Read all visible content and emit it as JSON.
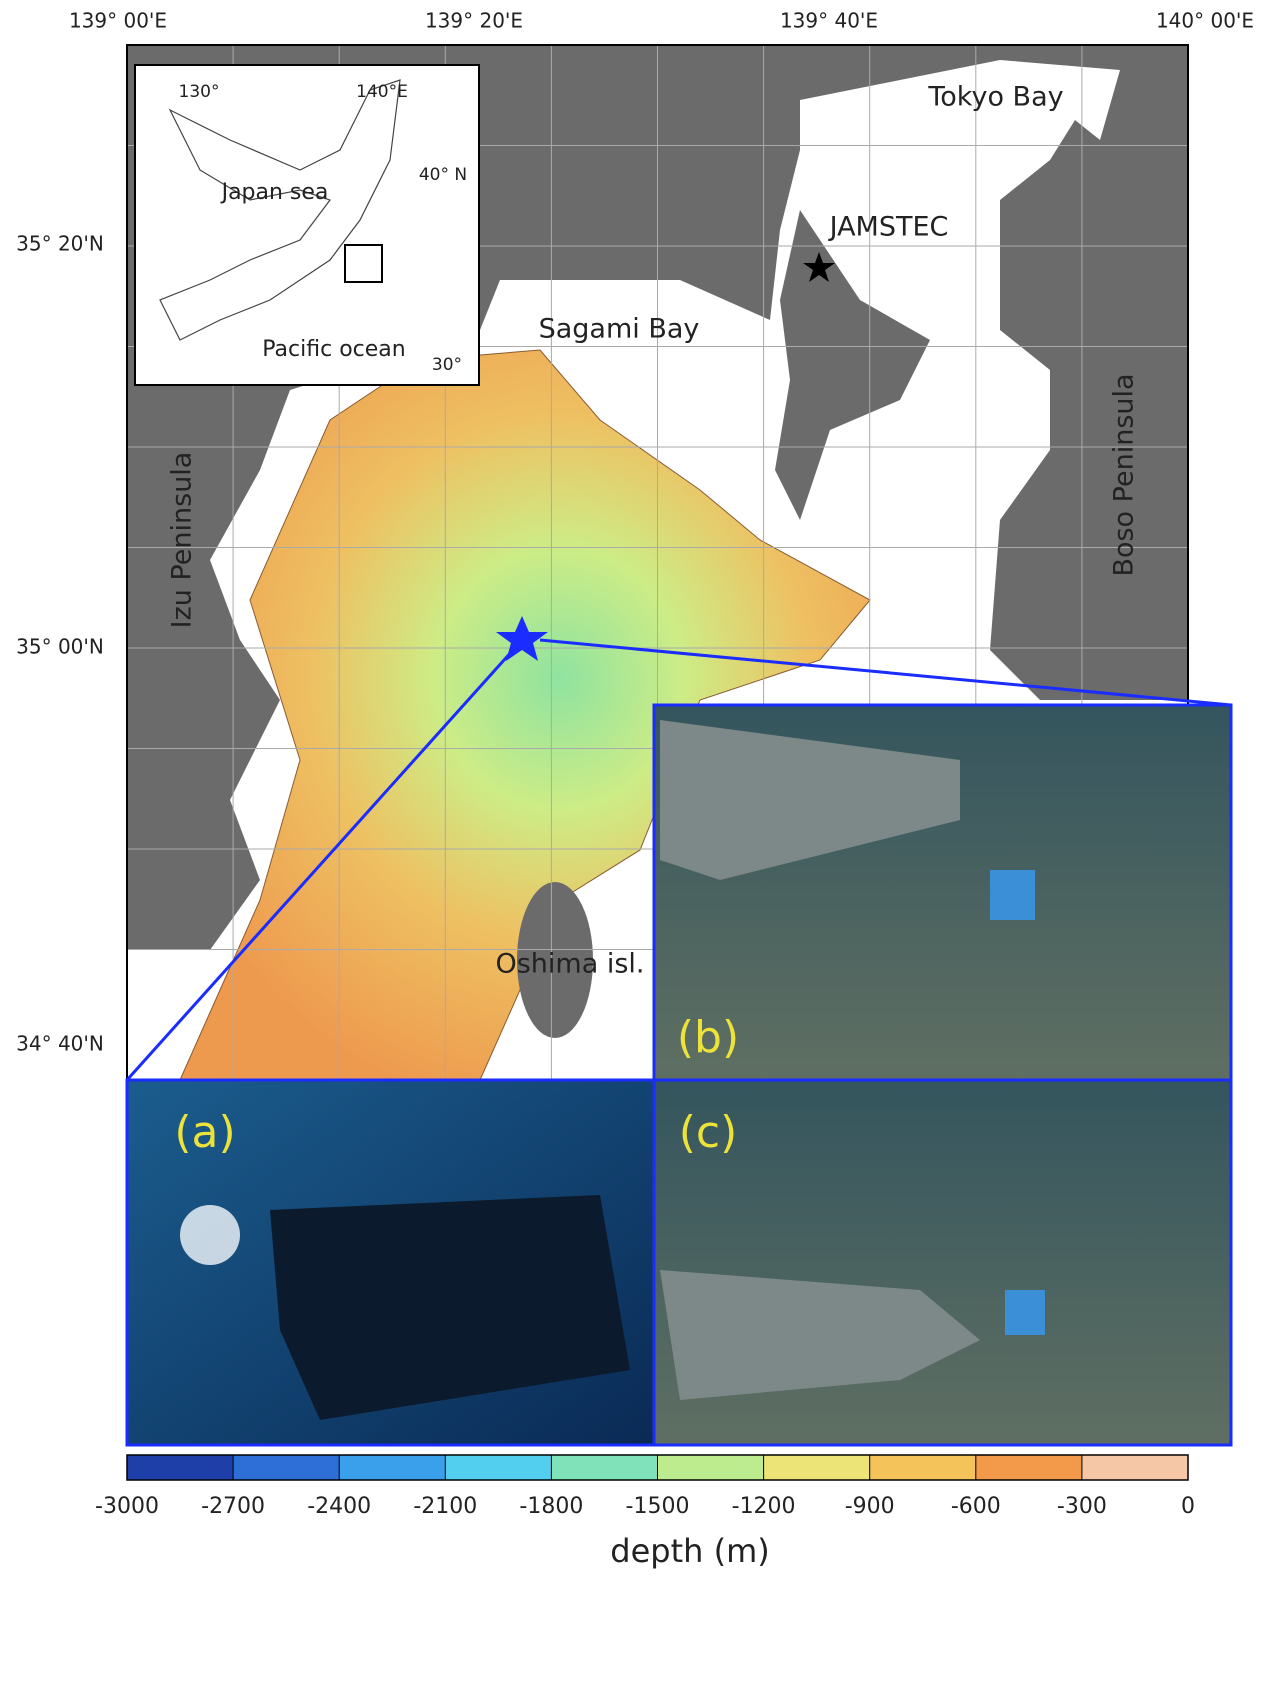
{
  "map": {
    "lon_labels": [
      "139° 00'E",
      "139° 20'E",
      "139° 40'E",
      "140° 00'E"
    ],
    "lat_labels": [
      "35° 20'N",
      "35° 00'N",
      "34° 40'N"
    ],
    "places": {
      "tokyo_bay": "Tokyo Bay",
      "jamstec": "JAMSTEC",
      "sagami_bay": "Sagami Bay",
      "izu": "Izu Peninsula",
      "boso": "Boso Peninsula",
      "oshima": "Oshima isl."
    },
    "inset": {
      "lon1": "130°",
      "lon2": "140°E",
      "lat1": "40° N",
      "lat2": "30°",
      "sea": "Japan sea",
      "ocean": "Pacific ocean"
    }
  },
  "panels": {
    "a": "(a)",
    "b": "(b)",
    "c": "(c)"
  },
  "colorbar": {
    "label": "depth (m)",
    "range": [
      -3000,
      0
    ],
    "ticks": [
      -3000,
      -2700,
      -2400,
      -2100,
      -1800,
      -1500,
      -1200,
      -900,
      -600,
      -300,
      0
    ],
    "colors": [
      "#1e3ea8",
      "#2d6fd6",
      "#3aa0ec",
      "#52cfee",
      "#7fe2b8",
      "#bdec8e",
      "#ede478",
      "#f4c35a",
      "#f29a4a",
      "#f6c7a6"
    ]
  }
}
